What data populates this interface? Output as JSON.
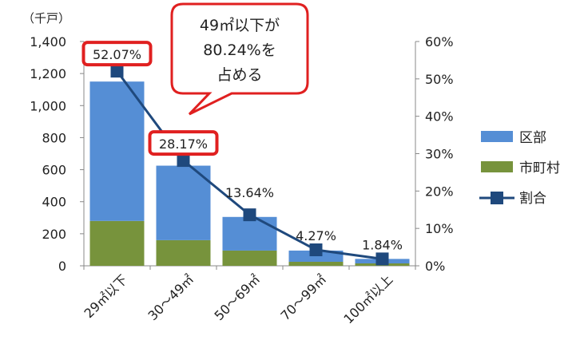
{
  "chart_data": {
    "type": "bar",
    "stacked": true,
    "categories": [
      "29㎡以下",
      "30～49㎡",
      "50～69㎡",
      "70～99㎡",
      "100㎡以上"
    ],
    "series": [
      {
        "name": "市町村",
        "kind": "bar",
        "axis": "left",
        "color": "#77933c",
        "values": [
          280,
          160,
          95,
          25,
          15
        ]
      },
      {
        "name": "区部",
        "kind": "bar",
        "axis": "left",
        "color": "#558ed5",
        "values": [
          870,
          465,
          210,
          70,
          28
        ]
      },
      {
        "name": "割合",
        "kind": "line",
        "axis": "right",
        "color": "#1f497d",
        "values": [
          52.07,
          28.17,
          13.64,
          4.27,
          1.84
        ]
      }
    ],
    "data_labels": [
      "52.07%",
      "28.17%",
      "13.64%",
      "4.27%",
      "1.84%"
    ],
    "highlighted_labels": [
      0,
      1
    ],
    "y_left": {
      "unit_label": "（千戸）",
      "ylim": [
        0,
        1400
      ],
      "ticks": [
        "0",
        "200",
        "400",
        "600",
        "800",
        "1,000",
        "1,200",
        "1,400"
      ]
    },
    "y_right": {
      "ylim": [
        0,
        60
      ],
      "ticks": [
        "0%",
        "10%",
        "20%",
        "30%",
        "40%",
        "50%",
        "60%"
      ]
    },
    "legend": {
      "position": "right",
      "entries": [
        "区部",
        "市町村",
        "割合"
      ]
    },
    "callout": {
      "lines": [
        "49㎡以下が",
        "80.24%を",
        "占める"
      ],
      "border_color": "#e02020"
    },
    "grid": false
  }
}
